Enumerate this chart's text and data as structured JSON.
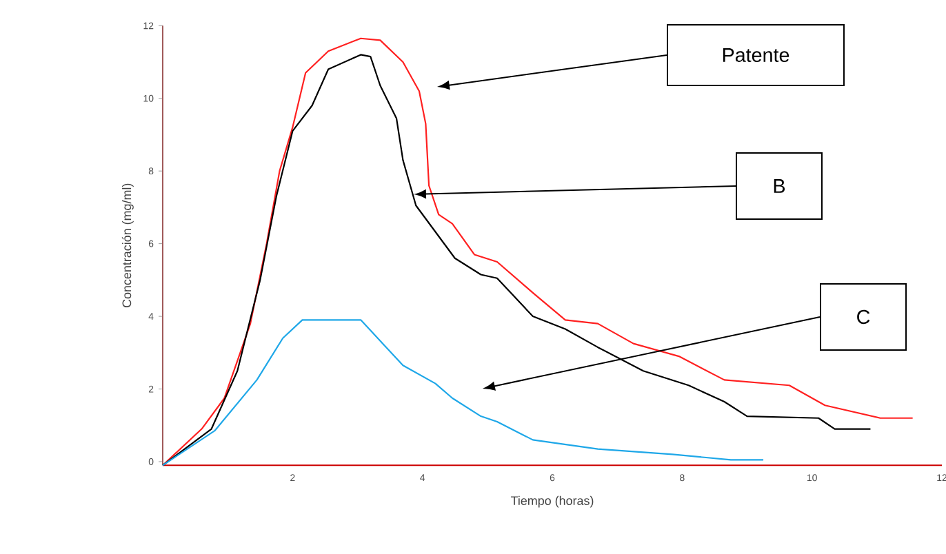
{
  "chart_data": {
    "type": "line",
    "xlabel": "Tiempo (horas)",
    "ylabel": "Concentración (mg/ml)",
    "xlim": [
      0,
      12
    ],
    "ylim": [
      -0.1,
      12
    ],
    "xticks": [
      2,
      4,
      6,
      8,
      10,
      12
    ],
    "yticks": [
      0,
      2,
      4,
      6,
      8,
      10,
      12
    ],
    "marker": "none",
    "line_style": "solid",
    "series": [
      {
        "color": "#ff2020",
        "x": [
          0,
          0.6,
          0.95,
          1.35,
          1.6,
          1.8,
          2.0,
          2.2,
          2.55,
          3.05,
          3.35,
          3.7,
          3.95,
          4.05,
          4.1,
          4.25,
          4.46,
          4.8,
          5.15,
          5.7,
          6.2,
          6.7,
          7.25,
          7.95,
          8.65,
          9.65,
          10.2,
          11.05,
          11.55
        ],
        "values": [
          -0.1,
          0.9,
          1.75,
          3.8,
          6.0,
          8.0,
          9.2,
          10.7,
          11.3,
          11.65,
          11.6,
          11.0,
          10.2,
          9.3,
          7.6,
          6.8,
          6.55,
          5.7,
          5.5,
          4.65,
          3.9,
          3.8,
          3.25,
          2.9,
          2.25,
          2.1,
          1.55,
          1.2,
          1.2
        ]
      },
      {
        "color": "#000000",
        "x": [
          0,
          0.75,
          1.15,
          1.5,
          1.75,
          2.0,
          2.3,
          2.55,
          3.05,
          3.2,
          3.35,
          3.6,
          3.7,
          3.9,
          4.5,
          4.9,
          5.15,
          5.7,
          6.2,
          6.7,
          7.4,
          8.1,
          8.65,
          9.0,
          10.1,
          10.35,
          10.9
        ],
        "values": [
          -0.1,
          0.9,
          2.5,
          5.0,
          7.3,
          9.1,
          9.8,
          10.8,
          11.2,
          11.15,
          10.35,
          9.45,
          8.3,
          7.05,
          5.6,
          5.15,
          5.05,
          4.0,
          3.65,
          3.15,
          2.5,
          2.1,
          1.65,
          1.25,
          1.2,
          0.9,
          0.9
        ]
      },
      {
        "color": "#1ea7e8",
        "x": [
          0,
          0.8,
          1.45,
          1.85,
          2.15,
          3.05,
          3.7,
          4.2,
          4.46,
          4.9,
          5.15,
          5.7,
          6.7,
          7.85,
          8.75,
          9.25
        ],
        "values": [
          -0.1,
          0.85,
          2.25,
          3.4,
          3.9,
          3.9,
          2.65,
          2.15,
          1.75,
          1.25,
          1.1,
          0.6,
          0.35,
          0.2,
          0.05,
          0.05
        ]
      }
    ],
    "annotations": [
      "Patente",
      "B",
      "C"
    ]
  }
}
